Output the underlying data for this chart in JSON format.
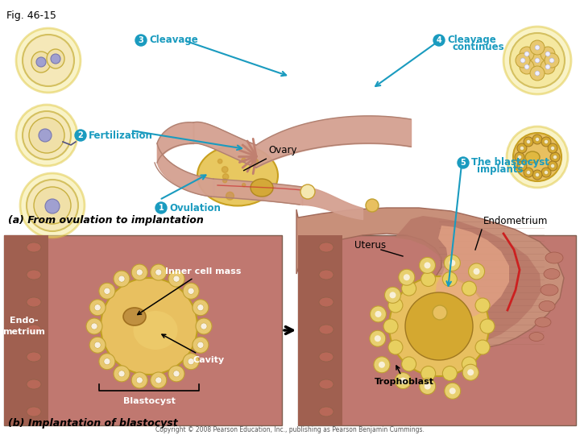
{
  "fig_label": "Fig. 46-15",
  "bg_color": "#ffffff",
  "label_color": "#1a9bbf",
  "title_a": "(a) From ovulation to implantation",
  "title_b": "(b) Implantation of blastocyst",
  "copyright": "Copyright © 2008 Pearson Education, Inc., publishing as Pearson Benjamin Cummings.",
  "labels": {
    "cleavage": "Cleavage",
    "cleavage_continues": "Cleavage\ncontinues",
    "fertilization": "Fertilization",
    "ovary": "Ovary",
    "uterus": "Uterus",
    "ovulation": "Ovulation",
    "blastocyst_implants": "The blastocyst\nimplants",
    "endometrium": "Endometrium",
    "inner_cell_mass": "Inner cell mass",
    "cavity": "Cavity",
    "blastocyst": "Blastocyst",
    "trophoblast": "Trophoblast",
    "endo_metrium": "Endo-\nmetrium"
  },
  "circle_color": "#1a9bbf",
  "circle_text_color": "#ffffff",
  "arrow_color": "#1a9bbf",
  "panel_b_bg": "#c07870",
  "endo_wall_color": "#a06050",
  "ovary_color": "#e8c860",
  "tube_color": "#d4a090",
  "tube_edge": "#b08070",
  "uterus_color": "#c8907a",
  "uterus_edge": "#a06858",
  "cell_fill": "#f5e8b0",
  "cell_edge": "#d4c060",
  "nuc_fill": "#9090c0",
  "morula_fill": "#e8c870",
  "blasto_fill": "#e8c060"
}
